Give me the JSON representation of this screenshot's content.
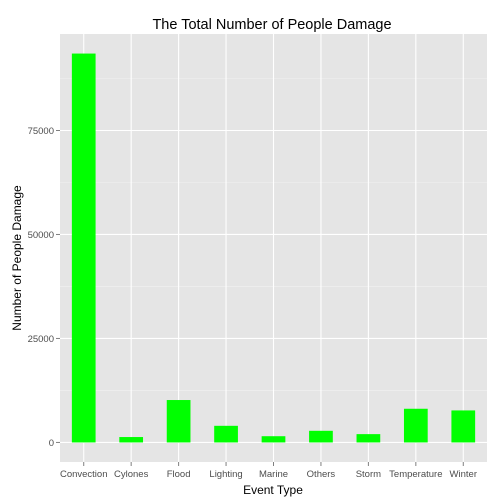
{
  "chart_data": {
    "type": "bar",
    "title": "The Total Number of People Damage",
    "xlabel": "Event Type",
    "ylabel": "Number of People Damage",
    "categories": [
      "Convection",
      "Cylones",
      "Flood",
      "Lighting",
      "Marine",
      "Others",
      "Storm",
      "Temperature",
      "Winter"
    ],
    "values": [
      93500,
      1300,
      10200,
      4000,
      1500,
      2800,
      2000,
      8100,
      7700
    ],
    "ylim": [
      -4700,
      98200
    ],
    "yticks": [
      0,
      25000,
      50000,
      75000
    ],
    "ytick_labels": [
      "0",
      "25000",
      "50000",
      "75000"
    ],
    "grid": true,
    "colors": {
      "bar": "#00ff00",
      "panel": "#e5e5e5",
      "grid_major": "#ffffff",
      "grid_minor": "#f2f2f2",
      "tick_text": "#4d4d4d"
    }
  }
}
